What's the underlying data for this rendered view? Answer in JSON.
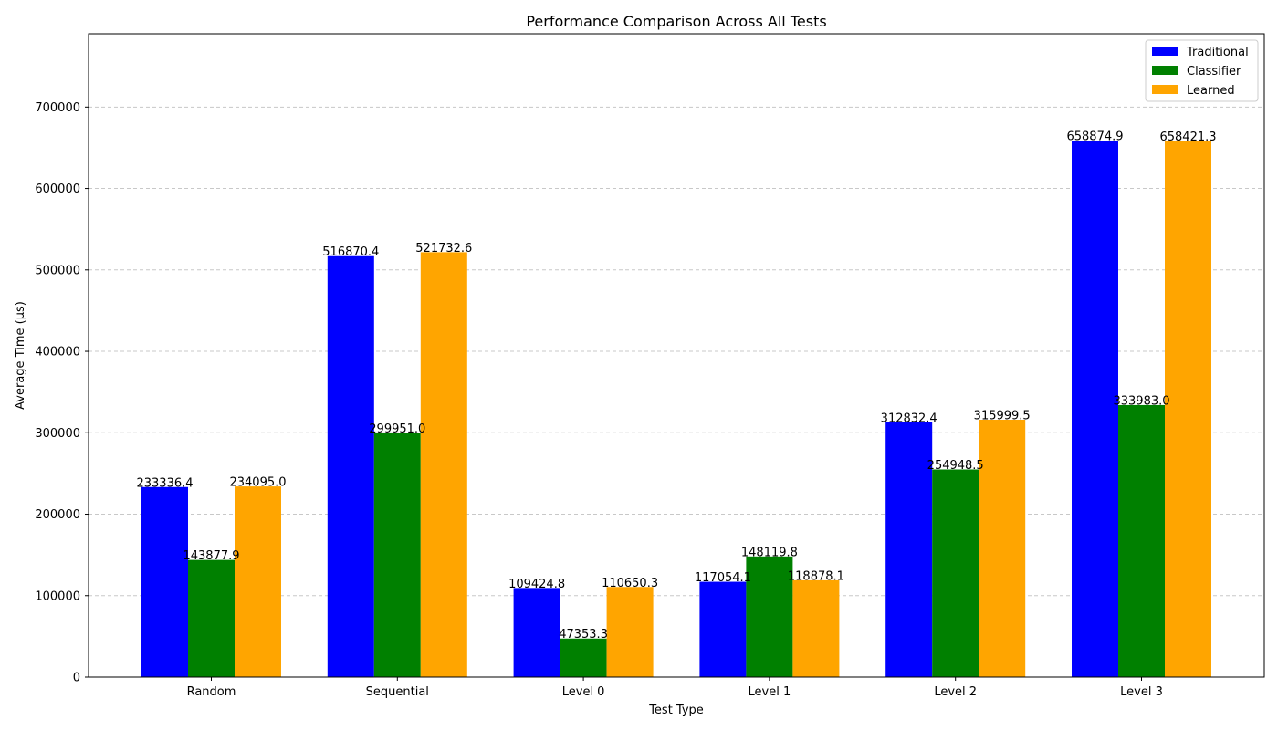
{
  "chart_data": {
    "type": "bar",
    "title": "Performance Comparison Across All Tests",
    "xlabel": "Test Type",
    "ylabel": "Average Time (µs)",
    "categories": [
      "Random",
      "Sequential",
      "Level 0",
      "Level 1",
      "Level 2",
      "Level 3"
    ],
    "series": [
      {
        "name": "Traditional",
        "color": "#0000ff",
        "values": [
          233336.4,
          516870.4,
          109424.8,
          117054.1,
          312832.4,
          658874.9
        ]
      },
      {
        "name": "Classifier",
        "color": "#008000",
        "values": [
          143877.9,
          299951.0,
          47353.3,
          148119.8,
          254948.5,
          333983.0
        ]
      },
      {
        "name": "Learned",
        "color": "#ffa500",
        "values": [
          234095.0,
          521732.6,
          110650.3,
          118878.1,
          315999.5,
          658421.3
        ]
      }
    ],
    "ylim": [
      0,
      790000
    ],
    "yticks": [
      0,
      100000,
      200000,
      300000,
      400000,
      500000,
      600000,
      700000
    ],
    "grid": "y-dashed",
    "legend_position": "top-right"
  }
}
